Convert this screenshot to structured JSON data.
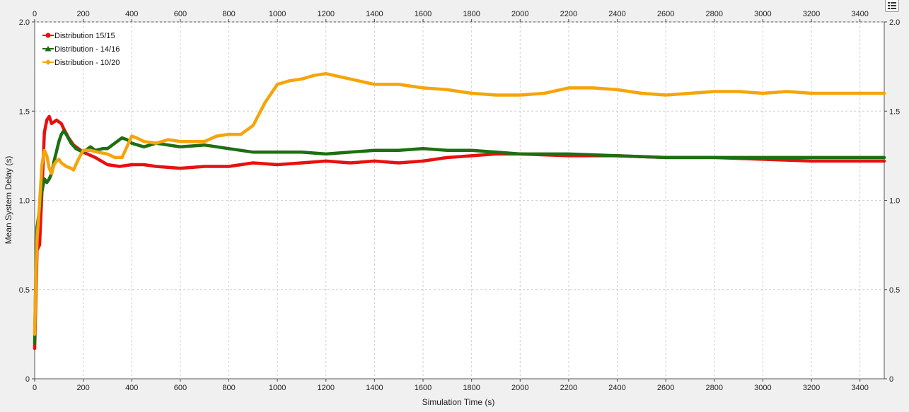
{
  "ui": {
    "options_icon": "list-options-icon"
  },
  "chart_data": {
    "type": "line",
    "xlabel": "Simulation Time (s)",
    "ylabel": "Mean System Delay (s)",
    "xlim": [
      0,
      3500
    ],
    "ylim": [
      0,
      2.0
    ],
    "x_ticks": [
      0,
      200,
      400,
      600,
      800,
      1000,
      1200,
      1400,
      1600,
      1800,
      2000,
      2200,
      2400,
      2600,
      2800,
      3000,
      3200,
      3400
    ],
    "x_tick_labels": [
      "0",
      "200",
      "400",
      "600",
      "800",
      "1000",
      "1200",
      "1400",
      "1600",
      "1800",
      "2000",
      "2200",
      "2400",
      "2600",
      "2800",
      "3000",
      "3200",
      "3400"
    ],
    "y_ticks": [
      0,
      0.5,
      1.0,
      1.5,
      2.0
    ],
    "y_tick_labels": [
      "0",
      "0.5",
      "1.0",
      "1.5",
      "2.0"
    ],
    "grid": true,
    "legend_position": "top-left",
    "series": [
      {
        "name": "Distribution 15/15",
        "color": "#e81010",
        "marker": "circle",
        "x": [
          0,
          5,
          10,
          20,
          30,
          40,
          50,
          60,
          70,
          80,
          90,
          100,
          110,
          120,
          140,
          160,
          180,
          200,
          250,
          300,
          350,
          400,
          450,
          500,
          600,
          700,
          800,
          900,
          1000,
          1100,
          1200,
          1300,
          1400,
          1500,
          1600,
          1700,
          1800,
          1900,
          2000,
          2200,
          2400,
          2600,
          2800,
          3000,
          3200,
          3400,
          3500
        ],
        "y": [
          0.17,
          0.45,
          0.72,
          0.75,
          1.05,
          1.38,
          1.45,
          1.47,
          1.43,
          1.44,
          1.45,
          1.44,
          1.43,
          1.4,
          1.35,
          1.31,
          1.29,
          1.27,
          1.24,
          1.2,
          1.19,
          1.2,
          1.2,
          1.19,
          1.18,
          1.19,
          1.19,
          1.21,
          1.2,
          1.21,
          1.22,
          1.21,
          1.22,
          1.21,
          1.22,
          1.24,
          1.25,
          1.26,
          1.26,
          1.25,
          1.25,
          1.24,
          1.24,
          1.23,
          1.22,
          1.22,
          1.22
        ]
      },
      {
        "name": "Distribution - 14/16",
        "color": "#1e6e12",
        "marker": "triangle",
        "x": [
          0,
          5,
          10,
          20,
          30,
          40,
          50,
          60,
          70,
          80,
          100,
          110,
          120,
          130,
          150,
          170,
          200,
          230,
          250,
          280,
          300,
          330,
          360,
          380,
          400,
          450,
          500,
          600,
          700,
          800,
          900,
          1000,
          1100,
          1200,
          1300,
          1400,
          1500,
          1600,
          1700,
          1800,
          1900,
          2000,
          2200,
          2400,
          2600,
          2800,
          3000,
          3200,
          3400,
          3500
        ],
        "y": [
          0.2,
          0.6,
          0.85,
          0.95,
          1.05,
          1.12,
          1.1,
          1.12,
          1.15,
          1.22,
          1.33,
          1.37,
          1.39,
          1.37,
          1.32,
          1.29,
          1.27,
          1.3,
          1.28,
          1.29,
          1.29,
          1.32,
          1.35,
          1.34,
          1.32,
          1.3,
          1.32,
          1.3,
          1.31,
          1.29,
          1.27,
          1.27,
          1.27,
          1.26,
          1.27,
          1.28,
          1.28,
          1.29,
          1.28,
          1.28,
          1.27,
          1.26,
          1.26,
          1.25,
          1.24,
          1.24,
          1.24,
          1.24,
          1.24,
          1.24
        ]
      },
      {
        "name": "Distribution - 10/20",
        "color": "#f5a50a",
        "marker": "diamond",
        "x": [
          0,
          5,
          10,
          20,
          30,
          40,
          50,
          60,
          70,
          80,
          90,
          100,
          110,
          120,
          130,
          150,
          160,
          180,
          200,
          230,
          260,
          300,
          330,
          360,
          380,
          400,
          420,
          450,
          500,
          550,
          600,
          650,
          700,
          750,
          800,
          850,
          900,
          950,
          1000,
          1050,
          1100,
          1150,
          1200,
          1300,
          1400,
          1500,
          1600,
          1700,
          1800,
          1900,
          2000,
          2100,
          2200,
          2300,
          2400,
          2500,
          2600,
          2700,
          2800,
          2900,
          3000,
          3100,
          3200,
          3300,
          3400,
          3500
        ],
        "y": [
          0.25,
          0.55,
          0.78,
          0.98,
          1.2,
          1.28,
          1.25,
          1.18,
          1.15,
          1.2,
          1.22,
          1.23,
          1.21,
          1.2,
          1.19,
          1.18,
          1.17,
          1.23,
          1.28,
          1.28,
          1.27,
          1.26,
          1.24,
          1.24,
          1.3,
          1.36,
          1.35,
          1.33,
          1.32,
          1.34,
          1.33,
          1.33,
          1.33,
          1.36,
          1.37,
          1.37,
          1.42,
          1.55,
          1.65,
          1.67,
          1.68,
          1.7,
          1.71,
          1.68,
          1.65,
          1.65,
          1.63,
          1.62,
          1.6,
          1.59,
          1.59,
          1.6,
          1.63,
          1.63,
          1.62,
          1.6,
          1.59,
          1.6,
          1.61,
          1.61,
          1.6,
          1.61,
          1.6,
          1.6,
          1.6,
          1.6
        ]
      }
    ]
  }
}
